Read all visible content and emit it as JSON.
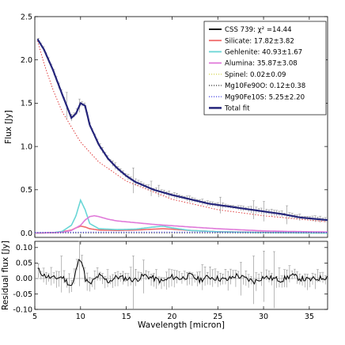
{
  "chart_data": [
    {
      "type": "line",
      "panel": "top",
      "ylabel": "Flux [Jy]",
      "xlim": [
        5,
        37
      ],
      "ylim": [
        -0.05,
        2.5
      ],
      "x_ticks": [
        5,
        10,
        15,
        20,
        25,
        30,
        35
      ],
      "y_ticks": [
        0.0,
        0.5,
        1.0,
        1.5,
        2.0,
        2.5
      ],
      "y_tick_labels": [
        "0.0",
        "0.5",
        "1.0",
        "1.5",
        "2.0",
        "2.5"
      ],
      "legend_position": "top-right",
      "series": [
        {
          "name": "CSS 739: χ² =14.44",
          "style": "black line with grey error bars",
          "color": "#000000",
          "x": [
            5.3,
            6,
            7,
            8,
            9,
            9.5,
            10,
            10.5,
            11,
            12,
            13,
            14,
            15,
            16,
            18,
            20,
            22,
            24,
            26,
            28,
            30,
            32,
            34,
            35,
            36,
            37
          ],
          "y": [
            2.24,
            2.12,
            1.88,
            1.6,
            1.33,
            1.38,
            1.5,
            1.47,
            1.25,
            1.02,
            0.86,
            0.75,
            0.66,
            0.59,
            0.5,
            0.44,
            0.39,
            0.34,
            0.31,
            0.28,
            0.25,
            0.22,
            0.18,
            0.17,
            0.16,
            0.15
          ]
        },
        {
          "name": "Silicate: 17.82±3.82",
          "color": "#f06a6a",
          "x": [
            5,
            7,
            8,
            9,
            9.5,
            10,
            10.5,
            11,
            12,
            14,
            16,
            18,
            19,
            20,
            22,
            25,
            30,
            37
          ],
          "y": [
            0,
            0.005,
            0.015,
            0.035,
            0.06,
            0.08,
            0.07,
            0.05,
            0.035,
            0.03,
            0.035,
            0.045,
            0.05,
            0.045,
            0.03,
            0.015,
            0.008,
            0.004
          ]
        },
        {
          "name": "Gehlenite: 40.93±1.67",
          "color": "#69d6d6",
          "x": [
            5,
            7,
            8,
            9,
            9.5,
            10,
            10.5,
            11,
            12,
            14,
            16,
            18,
            19,
            20,
            22,
            25,
            30,
            37
          ],
          "y": [
            0,
            0.005,
            0.02,
            0.09,
            0.2,
            0.38,
            0.27,
            0.11,
            0.05,
            0.04,
            0.045,
            0.07,
            0.08,
            0.06,
            0.03,
            0.015,
            0.005,
            0
          ]
        },
        {
          "name": "Alumina: 35.87±3.08",
          "color": "#e07ad9",
          "x": [
            5,
            7,
            8,
            9,
            10,
            10.5,
            11,
            11.5,
            12,
            13,
            14,
            16,
            18,
            20,
            22,
            25,
            28,
            30,
            33,
            37
          ],
          "y": [
            0,
            0.004,
            0.01,
            0.03,
            0.09,
            0.15,
            0.19,
            0.2,
            0.19,
            0.16,
            0.14,
            0.12,
            0.1,
            0.085,
            0.07,
            0.05,
            0.035,
            0.025,
            0.018,
            0.012
          ]
        },
        {
          "name": "Spinel: 0.02±0.09",
          "style": "dotted",
          "color": "#d8d860",
          "x": [
            5,
            37
          ],
          "y": [
            0.002,
            0.002
          ]
        },
        {
          "name": "Mg10Fe90O: 0.12±0.38",
          "style": "dotted",
          "color": "#5a5a5a",
          "x": [
            5,
            37
          ],
          "y": [
            0.004,
            0.004
          ]
        },
        {
          "name": "Mg90Fe10S: 5.25±2.20",
          "style": "dotted",
          "color": "#5a5ae6",
          "x": [
            5,
            10,
            20,
            30,
            37
          ],
          "y": [
            0.006,
            0.008,
            0.009,
            0.008,
            0.007
          ]
        },
        {
          "name": "Total fit",
          "color": "#24247a",
          "x": [
            5.3,
            6,
            7,
            8,
            9,
            9.5,
            10,
            10.5,
            11,
            12,
            13,
            14,
            15,
            16,
            18,
            20,
            22,
            24,
            26,
            28,
            30,
            32,
            34,
            35,
            36,
            37
          ],
          "y": [
            2.24,
            2.12,
            1.88,
            1.6,
            1.33,
            1.38,
            1.5,
            1.47,
            1.25,
            1.02,
            0.86,
            0.75,
            0.66,
            0.59,
            0.5,
            0.44,
            0.39,
            0.34,
            0.31,
            0.28,
            0.25,
            0.22,
            0.18,
            0.17,
            0.16,
            0.15
          ]
        }
      ],
      "extra_curves": [
        {
          "style": "red dotted (continuum)",
          "color": "#e04040",
          "x": [
            5.3,
            6,
            7,
            8,
            10,
            12,
            15,
            20,
            25,
            30,
            37
          ],
          "y": [
            2.22,
            1.96,
            1.65,
            1.4,
            1.05,
            0.82,
            0.6,
            0.39,
            0.27,
            0.2,
            0.13
          ]
        }
      ]
    },
    {
      "type": "line",
      "panel": "bottom",
      "xlabel": "Wavelength [micron]",
      "ylabel": "Residual flux [Jy]",
      "xlim": [
        5,
        37
      ],
      "ylim": [
        -0.1,
        0.12
      ],
      "x_ticks": [
        5,
        10,
        15,
        20,
        25,
        30,
        35
      ],
      "y_ticks": [
        -0.1,
        -0.05,
        0.0,
        0.05,
        0.1
      ],
      "y_tick_labels": [
        "-0.10",
        "-0.05",
        "0.00",
        "0.05",
        "0.10"
      ],
      "series": [
        {
          "color": "#000000",
          "x": [
            5.3,
            6,
            7,
            8,
            8.5,
            9,
            9.3,
            9.6,
            10,
            10.2,
            10.5,
            11,
            12,
            13,
            14,
            15,
            16,
            17,
            18,
            19,
            20,
            21,
            22,
            23,
            24,
            25,
            26,
            27,
            28,
            29,
            30,
            31,
            32,
            33,
            34,
            35,
            36,
            37
          ],
          "y": [
            0.03,
            0.01,
            0.0,
            0.005,
            -0.01,
            -0.025,
            -0.005,
            0.04,
            0.07,
            0.05,
            0.0,
            -0.02,
            0.01,
            -0.01,
            0.005,
            0.0,
            -0.005,
            0.01,
            0.0,
            -0.01,
            0.005,
            0.0,
            0.01,
            -0.005,
            0.005,
            0.0,
            -0.005,
            0.01,
            0.0,
            -0.01,
            0.005,
            0.0,
            -0.005,
            0.01,
            0.0,
            -0.005,
            0.0,
            0.005
          ]
        }
      ]
    }
  ]
}
